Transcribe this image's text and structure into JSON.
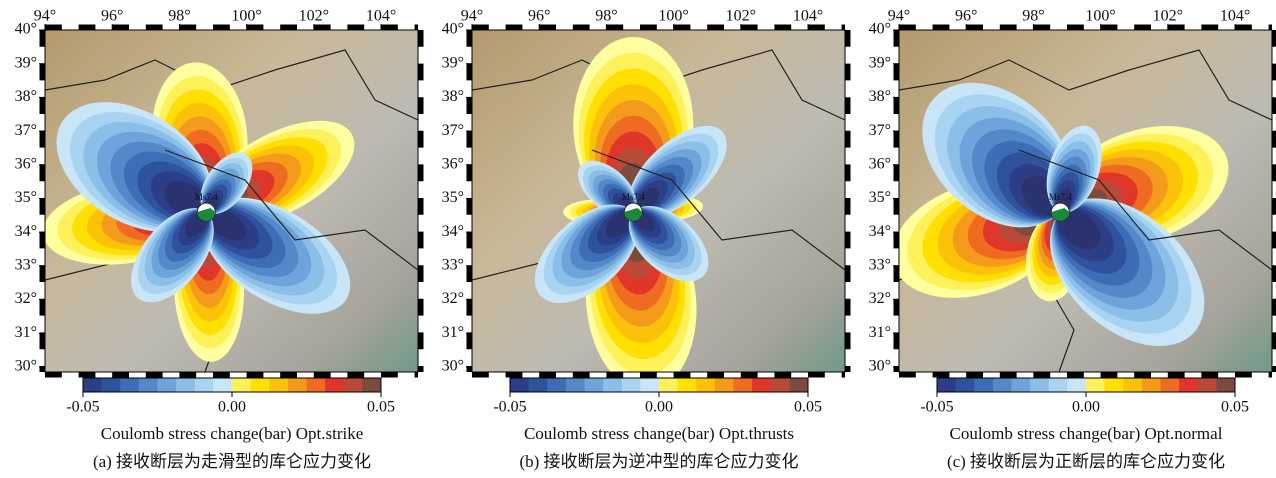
{
  "panels": [
    {
      "xlim": [
        94,
        105.1
      ],
      "ylim": [
        29.85,
        40
      ],
      "xticks": [
        {
          "value": 94,
          "label": "94°"
        },
        {
          "value": 96,
          "label": "96°"
        },
        {
          "value": 98,
          "label": "98°"
        },
        {
          "value": 100,
          "label": "100°"
        },
        {
          "value": 102,
          "label": "102°"
        },
        {
          "value": 104,
          "label": "104°"
        }
      ],
      "yticks": [
        {
          "value": 30,
          "label": "30°"
        },
        {
          "value": 31,
          "label": "31°"
        },
        {
          "value": 32,
          "label": "32°"
        },
        {
          "value": 33,
          "label": "33°"
        },
        {
          "value": 34,
          "label": "34°"
        },
        {
          "value": 35,
          "label": "35°"
        },
        {
          "value": 36,
          "label": "36°"
        },
        {
          "value": 37,
          "label": "37°"
        },
        {
          "value": 38,
          "label": "38°"
        },
        {
          "value": 39,
          "label": "39°"
        },
        {
          "value": 40,
          "label": "40°"
        }
      ],
      "epicenter": {
        "label": "Ms7.4",
        "lon": 98.8,
        "lat": 34.6
      },
      "colorbar": {
        "clim": [
          -0.05,
          0.05
        ],
        "ticks": [
          -0.05,
          {
            "value": 0,
            "label": "0.00"
          },
          0.05
        ],
        "label": "Coulomb stress change(bar) Opt.strike"
      },
      "caption": "(a) 接收断层为走滑型的库仑应力变化"
    },
    {
      "xlim": [
        94,
        105.1
      ],
      "ylim": [
        29.85,
        40
      ],
      "xticks": [
        {
          "value": 94,
          "label": "94°"
        },
        {
          "value": 96,
          "label": "96°"
        },
        {
          "value": 98,
          "label": "98°"
        },
        {
          "value": 100,
          "label": "100°"
        },
        {
          "value": 102,
          "label": "102°"
        },
        {
          "value": 104,
          "label": "104°"
        }
      ],
      "yticks": [
        {
          "value": 30,
          "label": "30°"
        },
        {
          "value": 31,
          "label": "31°"
        },
        {
          "value": 32,
          "label": "32°"
        },
        {
          "value": 33,
          "label": "33°"
        },
        {
          "value": 34,
          "label": "34°"
        },
        {
          "value": 35,
          "label": "35°"
        },
        {
          "value": 36,
          "label": "36°"
        },
        {
          "value": 37,
          "label": "37°"
        },
        {
          "value": 38,
          "label": "38°"
        },
        {
          "value": 39,
          "label": "39°"
        },
        {
          "value": 40,
          "label": "40°"
        }
      ],
      "epicenter": {
        "label": "Ms7.4",
        "lon": 98.8,
        "lat": 34.6
      },
      "colorbar": {
        "clim": [
          -0.05,
          0.05
        ],
        "ticks": [
          -0.05,
          {
            "value": 0,
            "label": "0.00"
          },
          0.05
        ],
        "label": "Coulomb stress change(bar) Opt.thrusts"
      },
      "caption": "(b) 接收断层为逆冲型的库仑应力变化"
    },
    {
      "xlim": [
        94,
        105.1
      ],
      "ylim": [
        29.85,
        40
      ],
      "xticks": [
        {
          "value": 94,
          "label": "94°"
        },
        {
          "value": 96,
          "label": "96°"
        },
        {
          "value": 98,
          "label": "98°"
        },
        {
          "value": 100,
          "label": "100°"
        },
        {
          "value": 102,
          "label": "102°"
        },
        {
          "value": 104,
          "label": "104°"
        }
      ],
      "yticks": [
        {
          "value": 30,
          "label": "30°"
        },
        {
          "value": 31,
          "label": "31°"
        },
        {
          "value": 32,
          "label": "32°"
        },
        {
          "value": 33,
          "label": "33°"
        },
        {
          "value": 34,
          "label": "34°"
        },
        {
          "value": 35,
          "label": "35°"
        },
        {
          "value": 36,
          "label": "36°"
        },
        {
          "value": 37,
          "label": "37°"
        },
        {
          "value": 38,
          "label": "38°"
        },
        {
          "value": 39,
          "label": "39°"
        },
        {
          "value": 40,
          "label": "40°"
        }
      ],
      "epicenter": {
        "label": "Ms7.4",
        "lon": 98.8,
        "lat": 34.6
      },
      "colorbar": {
        "clim": [
          -0.05,
          0.05
        ],
        "ticks": [
          -0.05,
          {
            "value": 0,
            "label": "0.00"
          },
          0.05
        ],
        "label": "Coulomb stress change(bar) Opt.normal"
      },
      "caption": "(c) 接收断层为正断层的库仑应力变化"
    }
  ]
}
